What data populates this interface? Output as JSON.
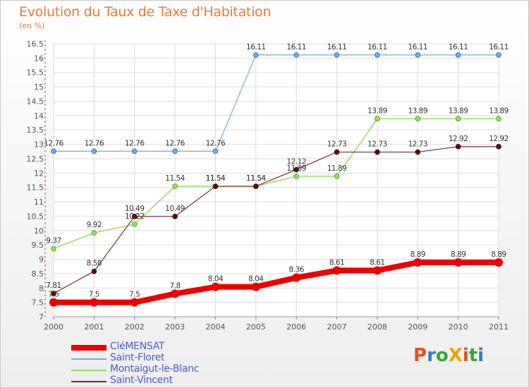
{
  "title": "Evolution du Taux de Taxe d'Habitation",
  "unit_label": "(en %)",
  "logo": {
    "text": "ProXiti",
    "colors": [
      "#e8501e",
      "#2e7ec8",
      "#3aa53a",
      "#f0a010",
      "#e8501e",
      "#3aa53a",
      "#2e7ec8"
    ]
  },
  "chart_data": {
    "type": "line",
    "x": [
      "2000",
      "2001",
      "2002",
      "2003",
      "2004",
      "2005",
      "2006",
      "2007",
      "2008",
      "2009",
      "2010",
      "2011"
    ],
    "ylim": [
      7,
      16.5
    ],
    "yticks": [
      "7",
      "7.5",
      "8",
      "8.5",
      "9",
      "9.5",
      "10",
      "10.5",
      "11",
      "11.5",
      "12",
      "12.5",
      "13",
      "13.5",
      "14",
      "14.5",
      "15",
      "15.5",
      "16",
      "16.5"
    ],
    "grid": true,
    "legend_position": "bottom-left",
    "series": [
      {
        "name": "CléMENSAT",
        "color": "#ee0000",
        "width": 8,
        "values": [
          7.5,
          7.5,
          7.5,
          7.8,
          8.04,
          8.04,
          8.36,
          8.61,
          8.61,
          8.89,
          8.89,
          8.89
        ],
        "labels": [
          "7.5",
          "7.5",
          "7.5",
          "7.8",
          "8.04",
          "8.04",
          "8.36",
          "8.61",
          "8.61",
          "8.89",
          "8.89",
          "8.89"
        ]
      },
      {
        "name": "Saint-Floret",
        "color": "#7aaad8",
        "width": 1.2,
        "values": [
          12.76,
          12.76,
          12.76,
          12.76,
          12.76,
          16.11,
          16.11,
          16.11,
          16.11,
          16.11,
          16.11,
          16.11
        ],
        "labels": [
          "12.76",
          "12.76",
          "12.76",
          "12.76",
          "12.76",
          "16.11",
          "16.11",
          "16.11",
          "16.11",
          "16.11",
          "16.11",
          "16.11"
        ]
      },
      {
        "name": "Montaigut-le-Blanc",
        "color": "#99dd66",
        "width": 1.5,
        "values": [
          9.37,
          9.92,
          10.22,
          11.54,
          11.54,
          11.54,
          11.89,
          11.89,
          13.89,
          13.89,
          13.89,
          13.89
        ],
        "labels": [
          "9.37",
          "9.92",
          "10.22",
          "11.54",
          "11.54",
          "11.54",
          "11.89",
          "11.89",
          "13.89",
          "13.89",
          "13.89",
          "13.89"
        ]
      },
      {
        "name": "Saint-Vincent",
        "color": "#7a2a2a",
        "width": 1.2,
        "values": [
          7.81,
          8.58,
          10.49,
          10.49,
          11.54,
          11.54,
          12.12,
          12.73,
          12.73,
          12.73,
          12.92,
          12.92
        ],
        "labels": [
          "7.81",
          "8.58",
          "10.49",
          "10.49",
          "11.54",
          "11.54",
          "12.12",
          "12.73",
          "12.73",
          "12.73",
          "12.92",
          "12.92"
        ]
      }
    ]
  }
}
